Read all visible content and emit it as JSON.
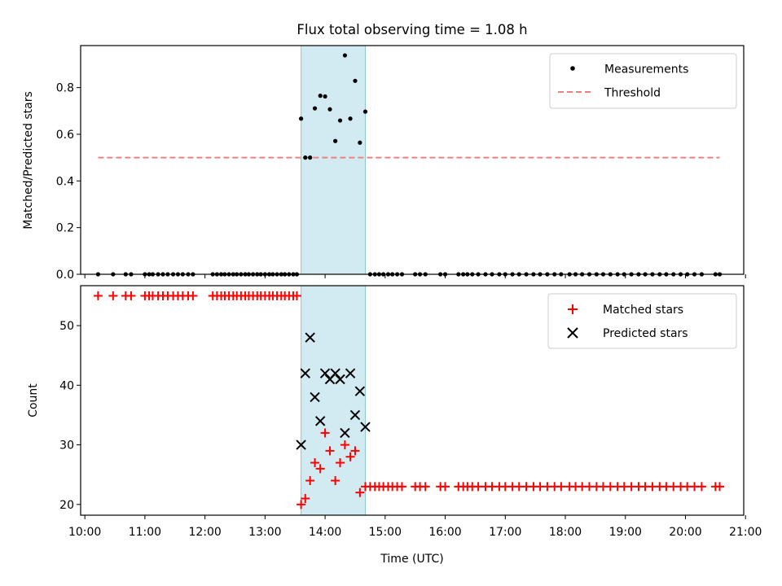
{
  "chart_data": [
    {
      "type": "scatter",
      "title": "Flux total observing time = 1.08 h",
      "xlabel": "",
      "ylabel": "Matched/Predicted stars",
      "xlim": [
        9.93,
        20.97
      ],
      "ylim": [
        0,
        0.98
      ],
      "yticks": [
        0.0,
        0.2,
        0.4,
        0.6,
        0.8
      ],
      "ytick_labels": [
        "0.0",
        "0.2",
        "0.4",
        "0.6",
        "0.8"
      ],
      "highlight_span": [
        13.6,
        14.67
      ],
      "threshold": {
        "name": "Threshold",
        "value": 0.5,
        "x_range": [
          10.22,
          20.57
        ],
        "color": "#f08080"
      },
      "legend": [
        "Measurements",
        "Threshold"
      ],
      "legend_position": "upper-right",
      "series": [
        {
          "name": "Measurements",
          "color": "#000000",
          "points": [
            [
              10.22,
              0
            ],
            [
              10.47,
              0
            ],
            [
              10.68,
              0
            ],
            [
              10.77,
              0
            ],
            [
              11.0,
              0
            ],
            [
              11.07,
              0
            ],
            [
              11.13,
              0
            ],
            [
              11.22,
              0
            ],
            [
              11.3,
              0
            ],
            [
              11.38,
              0
            ],
            [
              11.47,
              0
            ],
            [
              11.55,
              0
            ],
            [
              11.63,
              0
            ],
            [
              11.72,
              0
            ],
            [
              11.8,
              0
            ],
            [
              12.13,
              0
            ],
            [
              12.2,
              0
            ],
            [
              12.27,
              0
            ],
            [
              12.33,
              0
            ],
            [
              12.4,
              0
            ],
            [
              12.47,
              0
            ],
            [
              12.53,
              0
            ],
            [
              12.6,
              0
            ],
            [
              12.67,
              0
            ],
            [
              12.73,
              0
            ],
            [
              12.8,
              0
            ],
            [
              12.87,
              0
            ],
            [
              12.93,
              0
            ],
            [
              13.0,
              0
            ],
            [
              13.07,
              0
            ],
            [
              13.13,
              0
            ],
            [
              13.2,
              0
            ],
            [
              13.27,
              0
            ],
            [
              13.33,
              0
            ],
            [
              13.4,
              0
            ],
            [
              13.47,
              0
            ],
            [
              13.53,
              0
            ],
            [
              13.6,
              0.667
            ],
            [
              13.67,
              0.5
            ],
            [
              13.75,
              0.5
            ],
            [
              13.83,
              0.711
            ],
            [
              13.92,
              0.765
            ],
            [
              14.0,
              0.762
            ],
            [
              14.08,
              0.707
            ],
            [
              14.17,
              0.571
            ],
            [
              14.25,
              0.659
            ],
            [
              14.33,
              0.938
            ],
            [
              14.42,
              0.667
            ],
            [
              14.5,
              0.829
            ],
            [
              14.58,
              0.564
            ],
            [
              14.67,
              0.697
            ],
            [
              14.75,
              0
            ],
            [
              14.83,
              0
            ],
            [
              14.9,
              0
            ],
            [
              14.97,
              0
            ],
            [
              15.05,
              0
            ],
            [
              15.12,
              0
            ],
            [
              15.2,
              0
            ],
            [
              15.28,
              0
            ],
            [
              15.5,
              0
            ],
            [
              15.58,
              0
            ],
            [
              15.67,
              0
            ],
            [
              15.92,
              0
            ],
            [
              16.0,
              0
            ],
            [
              16.22,
              0
            ],
            [
              16.3,
              0
            ],
            [
              16.37,
              0
            ],
            [
              16.45,
              0
            ],
            [
              16.55,
              0
            ],
            [
              16.67,
              0
            ],
            [
              16.78,
              0
            ],
            [
              16.9,
              0
            ],
            [
              17.0,
              0
            ],
            [
              17.12,
              0
            ],
            [
              17.23,
              0
            ],
            [
              17.35,
              0
            ],
            [
              17.47,
              0
            ],
            [
              17.58,
              0
            ],
            [
              17.7,
              0
            ],
            [
              17.82,
              0
            ],
            [
              17.93,
              0
            ],
            [
              18.07,
              0
            ],
            [
              18.17,
              0
            ],
            [
              18.28,
              0
            ],
            [
              18.4,
              0
            ],
            [
              18.52,
              0
            ],
            [
              18.63,
              0
            ],
            [
              18.75,
              0
            ],
            [
              18.87,
              0
            ],
            [
              18.98,
              0
            ],
            [
              19.1,
              0
            ],
            [
              19.22,
              0
            ],
            [
              19.33,
              0
            ],
            [
              19.45,
              0
            ],
            [
              19.57,
              0
            ],
            [
              19.68,
              0
            ],
            [
              19.8,
              0
            ],
            [
              19.92,
              0
            ],
            [
              20.03,
              0
            ],
            [
              20.15,
              0
            ],
            [
              20.27,
              0
            ],
            [
              20.5,
              0
            ],
            [
              20.57,
              0
            ]
          ]
        }
      ]
    },
    {
      "type": "scatter",
      "title": "",
      "xlabel": "Time (UTC)",
      "ylabel": "Count",
      "xlim": [
        9.93,
        20.97
      ],
      "ylim": [
        18.2,
        56.7
      ],
      "yticks": [
        20,
        30,
        40,
        50
      ],
      "ytick_labels": [
        "20",
        "30",
        "40",
        "50"
      ],
      "xticks": [
        10,
        11,
        12,
        13,
        14,
        15,
        16,
        17,
        18,
        19,
        20,
        21
      ],
      "xtick_labels": [
        "10:00",
        "11:00",
        "12:00",
        "13:00",
        "14:00",
        "15:00",
        "16:00",
        "17:00",
        "18:00",
        "19:00",
        "20:00",
        "21:00"
      ],
      "highlight_span": [
        13.6,
        14.67
      ],
      "legend": [
        "Matched stars",
        "Predicted stars"
      ],
      "legend_position": "upper-right",
      "series": [
        {
          "name": "Matched stars",
          "marker": "+",
          "color": "#ff0000",
          "points": [
            [
              10.22,
              55
            ],
            [
              10.47,
              55
            ],
            [
              10.68,
              55
            ],
            [
              10.77,
              55
            ],
            [
              11.0,
              55
            ],
            [
              11.07,
              55
            ],
            [
              11.13,
              55
            ],
            [
              11.22,
              55
            ],
            [
              11.3,
              55
            ],
            [
              11.38,
              55
            ],
            [
              11.47,
              55
            ],
            [
              11.55,
              55
            ],
            [
              11.63,
              55
            ],
            [
              11.72,
              55
            ],
            [
              11.8,
              55
            ],
            [
              12.13,
              55
            ],
            [
              12.2,
              55
            ],
            [
              12.27,
              55
            ],
            [
              12.33,
              55
            ],
            [
              12.4,
              55
            ],
            [
              12.47,
              55
            ],
            [
              12.53,
              55
            ],
            [
              12.6,
              55
            ],
            [
              12.67,
              55
            ],
            [
              12.73,
              55
            ],
            [
              12.8,
              55
            ],
            [
              12.87,
              55
            ],
            [
              12.93,
              55
            ],
            [
              13.0,
              55
            ],
            [
              13.07,
              55
            ],
            [
              13.13,
              55
            ],
            [
              13.2,
              55
            ],
            [
              13.27,
              55
            ],
            [
              13.33,
              55
            ],
            [
              13.4,
              55
            ],
            [
              13.47,
              55
            ],
            [
              13.53,
              55
            ],
            [
              13.6,
              20
            ],
            [
              13.67,
              21
            ],
            [
              13.75,
              24
            ],
            [
              13.83,
              27
            ],
            [
              13.92,
              26
            ],
            [
              14.0,
              32
            ],
            [
              14.08,
              29
            ],
            [
              14.17,
              24
            ],
            [
              14.25,
              27
            ],
            [
              14.33,
              30
            ],
            [
              14.42,
              28
            ],
            [
              14.5,
              29
            ],
            [
              14.58,
              22
            ],
            [
              14.67,
              23
            ],
            [
              14.75,
              23
            ],
            [
              14.83,
              23
            ],
            [
              14.9,
              23
            ],
            [
              14.97,
              23
            ],
            [
              15.05,
              23
            ],
            [
              15.12,
              23
            ],
            [
              15.2,
              23
            ],
            [
              15.28,
              23
            ],
            [
              15.5,
              23
            ],
            [
              15.58,
              23
            ],
            [
              15.67,
              23
            ],
            [
              15.92,
              23
            ],
            [
              16.0,
              23
            ],
            [
              16.22,
              23
            ],
            [
              16.3,
              23
            ],
            [
              16.37,
              23
            ],
            [
              16.45,
              23
            ],
            [
              16.55,
              23
            ],
            [
              16.67,
              23
            ],
            [
              16.78,
              23
            ],
            [
              16.9,
              23
            ],
            [
              17.0,
              23
            ],
            [
              17.12,
              23
            ],
            [
              17.23,
              23
            ],
            [
              17.35,
              23
            ],
            [
              17.47,
              23
            ],
            [
              17.58,
              23
            ],
            [
              17.7,
              23
            ],
            [
              17.82,
              23
            ],
            [
              17.93,
              23
            ],
            [
              18.07,
              23
            ],
            [
              18.17,
              23
            ],
            [
              18.28,
              23
            ],
            [
              18.4,
              23
            ],
            [
              18.52,
              23
            ],
            [
              18.63,
              23
            ],
            [
              18.75,
              23
            ],
            [
              18.87,
              23
            ],
            [
              18.98,
              23
            ],
            [
              19.1,
              23
            ],
            [
              19.22,
              23
            ],
            [
              19.33,
              23
            ],
            [
              19.45,
              23
            ],
            [
              19.57,
              23
            ],
            [
              19.68,
              23
            ],
            [
              19.8,
              23
            ],
            [
              19.92,
              23
            ],
            [
              20.03,
              23
            ],
            [
              20.15,
              23
            ],
            [
              20.27,
              23
            ],
            [
              20.5,
              23
            ],
            [
              20.57,
              23
            ]
          ]
        },
        {
          "name": "Predicted stars",
          "marker": "x",
          "color": "#000000",
          "points": [
            [
              13.6,
              30
            ],
            [
              13.67,
              42
            ],
            [
              13.75,
              48
            ],
            [
              13.83,
              38
            ],
            [
              13.92,
              34
            ],
            [
              14.0,
              42
            ],
            [
              14.08,
              41
            ],
            [
              14.17,
              42
            ],
            [
              14.25,
              41
            ],
            [
              14.33,
              32
            ],
            [
              14.42,
              42
            ],
            [
              14.5,
              35
            ],
            [
              14.58,
              39
            ],
            [
              14.67,
              33
            ]
          ]
        }
      ]
    }
  ]
}
